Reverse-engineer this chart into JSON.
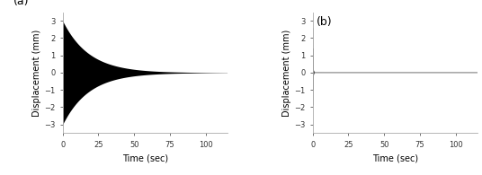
{
  "background_color": "#ffffff",
  "panel_a": {
    "label": "(a)",
    "xlim": [
      0,
      115
    ],
    "ylim": [
      -3.5,
      3.5
    ],
    "yticks": [
      -3,
      -2,
      -1,
      0,
      1,
      2,
      3
    ],
    "xticks": [
      0,
      25,
      50,
      75,
      100
    ],
    "xlabel": "Time (sec)",
    "ylabel": "Displacement (mm)",
    "amplitude": 3.0,
    "decay": 0.055,
    "freq": 8.0,
    "t_end": 115,
    "n_points": 50000,
    "fill_color": "#000000",
    "spine_color": "#aaaaaa"
  },
  "panel_b": {
    "label": "(b)",
    "xlim": [
      0,
      115
    ],
    "ylim": [
      -3.5,
      3.5
    ],
    "yticks": [
      -3,
      -2,
      -1,
      0,
      1,
      2,
      3
    ],
    "xticks": [
      0,
      25,
      50,
      75,
      100
    ],
    "xlabel": "Time (sec)",
    "ylabel": "Displacement (mm)",
    "amplitude": 3.0,
    "decay": 5.0,
    "freq": 8.0,
    "t_end": 115,
    "n_points": 50000,
    "line_color": "#555555",
    "spine_color": "#aaaaaa"
  },
  "label_fontsize": 9,
  "tick_fontsize": 6,
  "axis_label_fontsize": 7
}
